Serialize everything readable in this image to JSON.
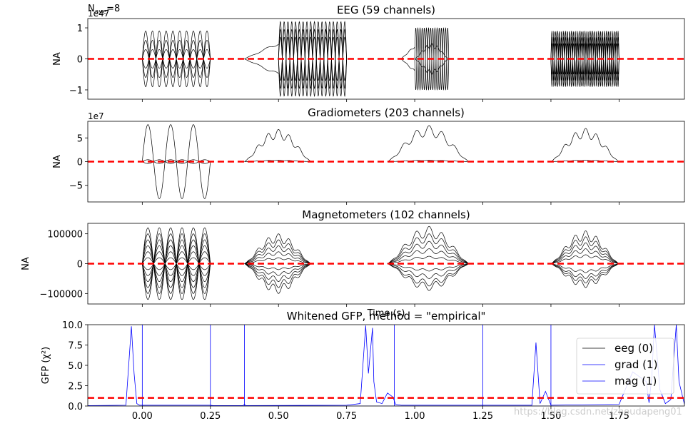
{
  "figure": {
    "nave_label": "N",
    "nave_sub": "ave",
    "nave_value": "=8",
    "watermark": "https://blog.csdn.net/zhoudapeng01"
  },
  "chart_data": [
    {
      "type": "line",
      "title": "EEG (59 channels)",
      "ylabel": "NA",
      "offset_text": "1e47",
      "xlim": [
        -0.2,
        1.99
      ],
      "ylim": [
        -1.3,
        1.3
      ],
      "yticks": [
        -1,
        0,
        1
      ],
      "yticklabels": [
        "−1",
        "0",
        "1"
      ],
      "show_xticklabels": false,
      "zero_line": 0,
      "bursts": [
        {
          "x_start": 0.0,
          "x_end": 0.25,
          "style": "sine",
          "freq_hz": 20,
          "amps": [
            0.9,
            0.6,
            0.3,
            -0.3,
            -0.6,
            -0.9
          ]
        },
        {
          "x_start": 0.375,
          "x_end": 0.5,
          "style": "ramp",
          "amps": [
            0.5,
            -0.5
          ]
        },
        {
          "x_start": 0.5,
          "x_end": 0.75,
          "style": "sine",
          "freq_hz": 36,
          "amps": [
            1.2,
            0.95,
            0.7,
            -0.7,
            -0.95,
            -1.2
          ]
        },
        {
          "x_start": 0.95,
          "x_end": 1.0,
          "style": "ramp",
          "amps": [
            0.4,
            -0.4
          ]
        },
        {
          "x_start": 1.0,
          "x_end": 1.125,
          "style": "hump",
          "amps": [
            0.5,
            -0.5
          ]
        },
        {
          "x_start": 1.0,
          "x_end": 1.125,
          "style": "sine",
          "freq_hz": 64,
          "amps": [
            1.0,
            -1.0
          ]
        },
        {
          "x_start": 1.5,
          "x_end": 1.75,
          "style": "sine",
          "freq_hz": 70,
          "amps": [
            0.9,
            0.7,
            0.5,
            -0.5,
            -0.7,
            -0.9
          ]
        }
      ]
    },
    {
      "type": "line",
      "title": "Gradiometers (203 channels)",
      "ylabel": "NA",
      "offset_text": "1e7",
      "xlim": [
        -0.2,
        1.99
      ],
      "ylim": [
        -8.5,
        8.5
      ],
      "yticks": [
        -5,
        0,
        5
      ],
      "yticklabels": [
        "−5",
        "0",
        "5"
      ],
      "show_xticklabels": false,
      "zero_line": 0,
      "bursts": [
        {
          "x_start": 0.0,
          "x_end": 0.25,
          "style": "sine",
          "freq_hz": 12,
          "amps": [
            7.8,
            0.4,
            -0.4
          ]
        },
        {
          "x_start": 0.375,
          "x_end": 0.62,
          "style": "hump",
          "amps": [
            6.8,
            0.3
          ]
        },
        {
          "x_start": 0.9,
          "x_end": 1.2,
          "style": "hump",
          "amps": [
            7.6,
            0.3
          ]
        },
        {
          "x_start": 1.5,
          "x_end": 1.75,
          "style": "hump",
          "amps": [
            7.0,
            0.3
          ]
        }
      ]
    },
    {
      "type": "line",
      "title": "Magnetometers (102 channels)",
      "ylabel": "NA",
      "offset_text": "",
      "xlim": [
        -0.2,
        1.99
      ],
      "ylim": [
        -135000,
        135000
      ],
      "yticks": [
        -100000,
        0,
        100000
      ],
      "yticklabels": [
        "−100000",
        "0",
        "100000"
      ],
      "show_xticklabels": false,
      "xlabel": "Time (s)",
      "zero_line": 0,
      "bursts": [
        {
          "x_start": 0.0,
          "x_end": 0.25,
          "style": "sine",
          "freq_hz": 12,
          "amps": [
            120000,
            100000,
            80000,
            60000,
            40000,
            20000,
            -20000,
            -40000,
            -60000,
            -80000,
            -100000,
            -120000
          ]
        },
        {
          "x_start": 0.375,
          "x_end": 0.62,
          "style": "hump",
          "amps": [
            100000,
            80000,
            60000,
            40000,
            20000,
            -20000,
            -40000,
            -60000,
            -80000,
            -100000
          ]
        },
        {
          "x_start": 0.9,
          "x_end": 1.2,
          "style": "hump",
          "amps": [
            125000,
            100000,
            75000,
            50000,
            25000,
            -25000,
            -50000,
            -75000,
            -90000
          ]
        },
        {
          "x_start": 1.5,
          "x_end": 1.75,
          "style": "hump",
          "amps": [
            110000,
            90000,
            70000,
            50000,
            30000,
            -30000,
            -50000,
            -65000,
            -80000
          ]
        }
      ]
    },
    {
      "type": "line",
      "title": "Whitened GFP, method = \"empirical\"",
      "ylabel": "GFP (χ²)",
      "xlabel": "",
      "xlim": [
        -0.2,
        1.99
      ],
      "ylim": [
        0,
        10
      ],
      "yticks": [
        0,
        2.5,
        5,
        7.5,
        10
      ],
      "yticklabels": [
        "0.0",
        "2.5",
        "5.0",
        "7.5",
        "10.0"
      ],
      "xticks": [
        0,
        0.25,
        0.5,
        0.75,
        1.0,
        1.25,
        1.5,
        1.75
      ],
      "xticklabels": [
        "0.00",
        "0.25",
        "0.50",
        "0.75",
        "1.00",
        "1.25",
        "1.50",
        "1.75"
      ],
      "reference_line": 1,
      "series": [
        {
          "name": "eeg (0)",
          "color": "#000000",
          "x": [],
          "y": []
        },
        {
          "name": "grad (1)",
          "color": "#0000ff",
          "x": [
            -0.2,
            -0.06,
            -0.04,
            -0.03,
            -0.02,
            -0.01,
            0.0,
            0.25,
            0.26,
            0.37,
            0.375,
            0.38,
            0.75,
            0.8,
            0.82,
            0.83,
            0.845,
            0.85,
            0.86,
            0.88,
            0.9,
            0.92,
            0.93,
            0.95,
            1.25,
            1.43,
            1.445,
            1.46,
            1.48,
            1.5,
            1.75,
            1.8,
            1.85,
            1.86,
            1.87,
            1.88,
            1.9,
            1.92,
            1.94,
            1.96,
            1.97,
            1.99
          ],
          "y": [
            0.05,
            0.1,
            9.8,
            4.0,
            0.3,
            0.1,
            0.1,
            0.1,
            0.05,
            0.05,
            0.2,
            0.05,
            0.1,
            0.3,
            9.9,
            4.0,
            9.6,
            3.0,
            0.5,
            0.3,
            1.6,
            1.1,
            0.2,
            0.1,
            0.1,
            0.1,
            7.8,
            0.3,
            1.8,
            0.1,
            0.2,
            4.2,
            3.0,
            0.4,
            3.5,
            10.0,
            2.0,
            0.3,
            0.8,
            10.0,
            3.0,
            0.2
          ]
        },
        {
          "name": "mag (1)",
          "color": "#0000ff",
          "x": [
            0.0,
            0.0,
            0.0,
            0.25,
            0.25,
            0.25,
            0.375,
            0.375,
            0.375,
            0.925,
            0.925,
            0.925,
            1.25,
            1.25,
            1.25,
            1.5,
            1.5,
            1.5
          ],
          "y": [
            0,
            10,
            0,
            0,
            10,
            0,
            0,
            10,
            0,
            0,
            10,
            0,
            0,
            10,
            0,
            0,
            10,
            0
          ]
        }
      ],
      "legend_placement": "right"
    }
  ]
}
